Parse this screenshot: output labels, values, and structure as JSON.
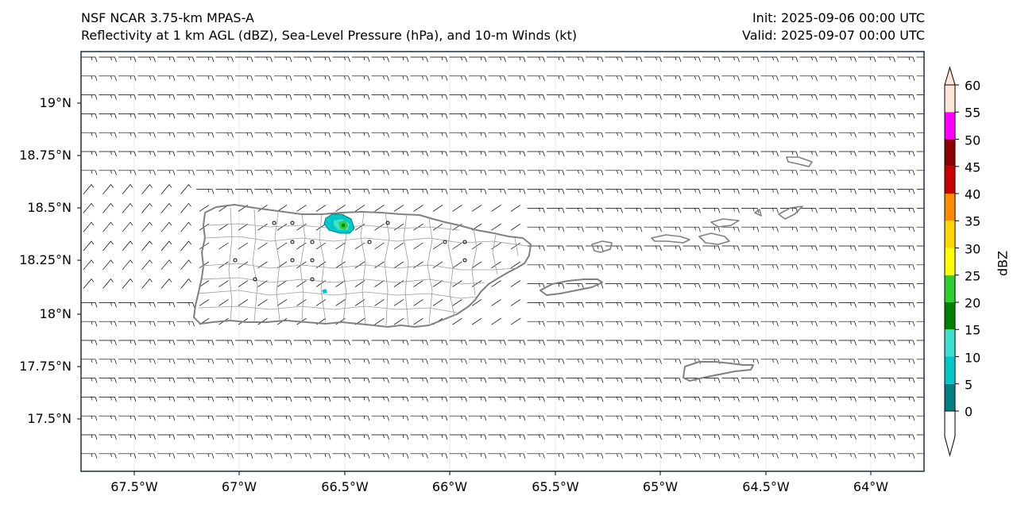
{
  "header": {
    "title_line1": "NSF NCAR 3.75-km MPAS-A",
    "title_line2": "Reflectivity at 1 km AGL (dBZ), Sea-Level Pressure (hPa), and 10-m Winds (kt)",
    "init_label": "Init: 2025-09-06 00:00 UTC",
    "valid_label": "Valid: 2025-09-07 00:00 UTC"
  },
  "map": {
    "lon_range": [
      -67.75,
      -63.75
    ],
    "lat_range": [
      17.25,
      19.25
    ],
    "lon_ticks": [
      "67.5°W",
      "67°W",
      "66.5°W",
      "66°W",
      "65.5°W",
      "65°W",
      "64.5°W",
      "64°W"
    ],
    "lat_ticks": [
      "19°N",
      "18.75°N",
      "18.5°N",
      "18.25°N",
      "18°N",
      "17.75°N",
      "17.5°N"
    ],
    "regions": [
      "Puerto Rico",
      "Vieques",
      "Culebra",
      "St. Thomas",
      "St. John",
      "St. Croix"
    ],
    "coast_color": "#808080",
    "frame_color": "#1e2a4a"
  },
  "colorbar": {
    "label": "dBZ",
    "ticks": [
      "0",
      "5",
      "10",
      "15",
      "20",
      "25",
      "30",
      "35",
      "40",
      "45",
      "50",
      "55",
      "60"
    ],
    "colors": [
      "#008080",
      "#00c8c8",
      "#40e0d0",
      "#008000",
      "#32cd32",
      "#ffff00",
      "#ffd700",
      "#ff8c00",
      "#c80000",
      "#8b0000",
      "#ff00ff",
      "#ffe4d8"
    ]
  }
}
